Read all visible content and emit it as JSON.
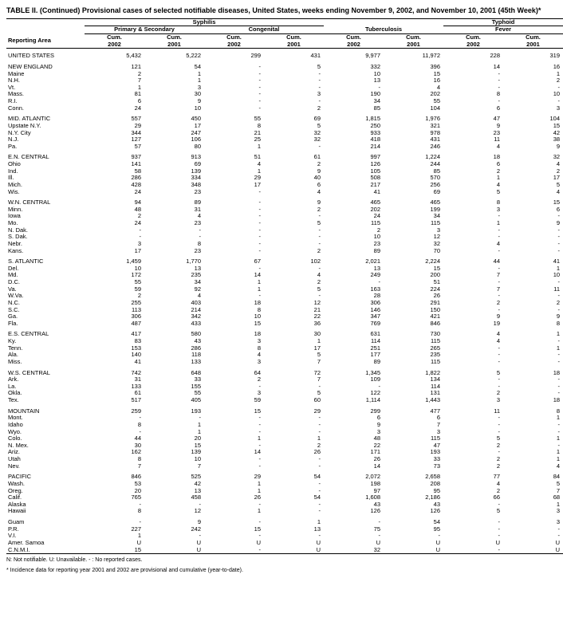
{
  "title": "TABLE II. (Continued) Provisional cases of selected notifiable diseases, United States, weeks ending November 9, 2002, and November 10, 2001 (45th Week)*",
  "footnote1": "N: Not notifiable.      U: Unavailable.      - : No reported cases.",
  "footnote2": "* Incidence data for reporting year 2001 and 2002 are provisional and cumulative (year-to-date).",
  "headers": {
    "syphilis": "Syphilis",
    "primary_secondary": "Primary & Secondary",
    "congenital": "Congenital",
    "tuberculosis": "Tuberculosis",
    "typhoid": "Typhoid",
    "fever": "Fever",
    "reporting_area": "Reporting Area",
    "cum2002": "Cum. 2002",
    "cum2001": "Cum. 2001"
  },
  "colors": {
    "text": "#000000",
    "bg": "#ffffff",
    "border": "#000000"
  },
  "font": {
    "family": "Arial, Helvetica, sans-serif",
    "size_body": 8,
    "size_title": 9,
    "size_foot": 7
  },
  "rows": [
    {
      "area": "UNITED STATES",
      "v": [
        "5,432",
        "5,222",
        "299",
        "431",
        "9,977",
        "11,972",
        "228",
        "319"
      ],
      "gap": true
    },
    {
      "area": "NEW ENGLAND",
      "v": [
        "121",
        "54",
        "-",
        "5",
        "332",
        "396",
        "14",
        "16"
      ],
      "gap": true
    },
    {
      "area": "Maine",
      "v": [
        "2",
        "1",
        "-",
        "-",
        "10",
        "15",
        "-",
        "1"
      ]
    },
    {
      "area": "N.H.",
      "v": [
        "7",
        "1",
        "-",
        "-",
        "13",
        "16",
        "-",
        "2"
      ]
    },
    {
      "area": "Vt.",
      "v": [
        "1",
        "3",
        "-",
        "-",
        "-",
        "4",
        "-",
        "-"
      ]
    },
    {
      "area": "Mass.",
      "v": [
        "81",
        "30",
        "-",
        "3",
        "190",
        "202",
        "8",
        "10"
      ]
    },
    {
      "area": "R.I.",
      "v": [
        "6",
        "9",
        "-",
        "-",
        "34",
        "55",
        "-",
        "-"
      ]
    },
    {
      "area": "Conn.",
      "v": [
        "24",
        "10",
        "-",
        "2",
        "85",
        "104",
        "6",
        "3"
      ]
    },
    {
      "area": "MID. ATLANTIC",
      "v": [
        "557",
        "450",
        "55",
        "69",
        "1,815",
        "1,976",
        "47",
        "104"
      ],
      "gap": true
    },
    {
      "area": "Upstate N.Y.",
      "v": [
        "29",
        "17",
        "8",
        "5",
        "250",
        "321",
        "9",
        "15"
      ]
    },
    {
      "area": "N.Y. City",
      "v": [
        "344",
        "247",
        "21",
        "32",
        "933",
        "978",
        "23",
        "42"
      ]
    },
    {
      "area": "N.J.",
      "v": [
        "127",
        "106",
        "25",
        "32",
        "418",
        "431",
        "11",
        "38"
      ]
    },
    {
      "area": "Pa.",
      "v": [
        "57",
        "80",
        "1",
        "-",
        "214",
        "246",
        "4",
        "9"
      ]
    },
    {
      "area": "E.N. CENTRAL",
      "v": [
        "937",
        "913",
        "51",
        "61",
        "997",
        "1,224",
        "18",
        "32"
      ],
      "gap": true
    },
    {
      "area": "Ohio",
      "v": [
        "141",
        "69",
        "4",
        "2",
        "126",
        "244",
        "6",
        "4"
      ]
    },
    {
      "area": "Ind.",
      "v": [
        "58",
        "139",
        "1",
        "9",
        "105",
        "85",
        "2",
        "2"
      ]
    },
    {
      "area": "Ill.",
      "v": [
        "286",
        "334",
        "29",
        "40",
        "508",
        "570",
        "1",
        "17"
      ]
    },
    {
      "area": "Mich.",
      "v": [
        "428",
        "348",
        "17",
        "6",
        "217",
        "256",
        "4",
        "5"
      ]
    },
    {
      "area": "Wis.",
      "v": [
        "24",
        "23",
        "-",
        "4",
        "41",
        "69",
        "5",
        "4"
      ]
    },
    {
      "area": "W.N. CENTRAL",
      "v": [
        "94",
        "89",
        "-",
        "9",
        "465",
        "465",
        "8",
        "15"
      ],
      "gap": true
    },
    {
      "area": "Minn.",
      "v": [
        "48",
        "31",
        "-",
        "2",
        "202",
        "199",
        "3",
        "6"
      ]
    },
    {
      "area": "Iowa",
      "v": [
        "2",
        "4",
        "-",
        "-",
        "24",
        "34",
        "-",
        "-"
      ]
    },
    {
      "area": "Mo.",
      "v": [
        "24",
        "23",
        "-",
        "5",
        "115",
        "115",
        "1",
        "9"
      ]
    },
    {
      "area": "N. Dak.",
      "v": [
        "-",
        "-",
        "-",
        "-",
        "2",
        "3",
        "-",
        "-"
      ]
    },
    {
      "area": "S. Dak.",
      "v": [
        "-",
        "-",
        "-",
        "-",
        "10",
        "12",
        "-",
        "-"
      ]
    },
    {
      "area": "Nebr.",
      "v": [
        "3",
        "8",
        "-",
        "-",
        "23",
        "32",
        "4",
        "-"
      ]
    },
    {
      "area": "Kans.",
      "v": [
        "17",
        "23",
        "-",
        "2",
        "89",
        "70",
        "-",
        "-"
      ]
    },
    {
      "area": "S. ATLANTIC",
      "v": [
        "1,459",
        "1,770",
        "67",
        "102",
        "2,021",
        "2,224",
        "44",
        "41"
      ],
      "gap": true
    },
    {
      "area": "Del.",
      "v": [
        "10",
        "13",
        "-",
        "-",
        "13",
        "15",
        "-",
        "1"
      ]
    },
    {
      "area": "Md.",
      "v": [
        "172",
        "235",
        "14",
        "4",
        "249",
        "200",
        "7",
        "10"
      ]
    },
    {
      "area": "D.C.",
      "v": [
        "55",
        "34",
        "1",
        "2",
        "-",
        "51",
        "-",
        "-"
      ]
    },
    {
      "area": "Va.",
      "v": [
        "59",
        "92",
        "1",
        "5",
        "163",
        "224",
        "7",
        "11"
      ]
    },
    {
      "area": "W.Va.",
      "v": [
        "2",
        "4",
        "-",
        "-",
        "28",
        "26",
        "-",
        "-"
      ]
    },
    {
      "area": "N.C.",
      "v": [
        "255",
        "403",
        "18",
        "12",
        "306",
        "291",
        "2",
        "2"
      ]
    },
    {
      "area": "S.C.",
      "v": [
        "113",
        "214",
        "8",
        "21",
        "146",
        "150",
        "-",
        "-"
      ]
    },
    {
      "area": "Ga.",
      "v": [
        "306",
        "342",
        "10",
        "22",
        "347",
        "421",
        "9",
        "9"
      ]
    },
    {
      "area": "Fla.",
      "v": [
        "487",
        "433",
        "15",
        "36",
        "769",
        "846",
        "19",
        "8"
      ]
    },
    {
      "area": "E.S. CENTRAL",
      "v": [
        "417",
        "580",
        "18",
        "30",
        "631",
        "730",
        "4",
        "1"
      ],
      "gap": true
    },
    {
      "area": "Ky.",
      "v": [
        "83",
        "43",
        "3",
        "1",
        "114",
        "115",
        "4",
        "-"
      ]
    },
    {
      "area": "Tenn.",
      "v": [
        "153",
        "286",
        "8",
        "17",
        "251",
        "265",
        "-",
        "1"
      ]
    },
    {
      "area": "Ala.",
      "v": [
        "140",
        "118",
        "4",
        "5",
        "177",
        "235",
        "-",
        "-"
      ]
    },
    {
      "area": "Miss.",
      "v": [
        "41",
        "133",
        "3",
        "7",
        "89",
        "115",
        "-",
        "-"
      ]
    },
    {
      "area": "W.S. CENTRAL",
      "v": [
        "742",
        "648",
        "64",
        "72",
        "1,345",
        "1,822",
        "5",
        "18"
      ],
      "gap": true
    },
    {
      "area": "Ark.",
      "v": [
        "31",
        "33",
        "2",
        "7",
        "109",
        "134",
        "-",
        "-"
      ]
    },
    {
      "area": "La.",
      "v": [
        "133",
        "155",
        "-",
        "-",
        "-",
        "114",
        "-",
        "-"
      ]
    },
    {
      "area": "Okla.",
      "v": [
        "61",
        "55",
        "3",
        "5",
        "122",
        "131",
        "2",
        "-"
      ]
    },
    {
      "area": "Tex.",
      "v": [
        "517",
        "405",
        "59",
        "60",
        "1,114",
        "1,443",
        "3",
        "18"
      ]
    },
    {
      "area": "MOUNTAIN",
      "v": [
        "259",
        "193",
        "15",
        "29",
        "299",
        "477",
        "11",
        "8"
      ],
      "gap": true
    },
    {
      "area": "Mont.",
      "v": [
        "-",
        "-",
        "-",
        "-",
        "6",
        "6",
        "-",
        "1"
      ]
    },
    {
      "area": "Idaho",
      "v": [
        "8",
        "1",
        "-",
        "-",
        "9",
        "7",
        "-",
        "-"
      ]
    },
    {
      "area": "Wyo.",
      "v": [
        "-",
        "1",
        "-",
        "-",
        "3",
        "3",
        "-",
        "-"
      ]
    },
    {
      "area": "Colo.",
      "v": [
        "44",
        "20",
        "1",
        "1",
        "48",
        "115",
        "5",
        "1"
      ]
    },
    {
      "area": "N. Mex.",
      "v": [
        "30",
        "15",
        "-",
        "2",
        "22",
        "47",
        "2",
        "-"
      ]
    },
    {
      "area": "Ariz.",
      "v": [
        "162",
        "139",
        "14",
        "26",
        "171",
        "193",
        "-",
        "1"
      ]
    },
    {
      "area": "Utah",
      "v": [
        "8",
        "10",
        "-",
        "-",
        "26",
        "33",
        "2",
        "1"
      ]
    },
    {
      "area": "Nev.",
      "v": [
        "7",
        "7",
        "-",
        "-",
        "14",
        "73",
        "2",
        "4"
      ]
    },
    {
      "area": "PACIFIC",
      "v": [
        "846",
        "525",
        "29",
        "54",
        "2,072",
        "2,658",
        "77",
        "84"
      ],
      "gap": true
    },
    {
      "area": "Wash.",
      "v": [
        "53",
        "42",
        "1",
        "-",
        "198",
        "208",
        "4",
        "5"
      ]
    },
    {
      "area": "Oreg.",
      "v": [
        "20",
        "13",
        "1",
        "-",
        "97",
        "95",
        "2",
        "7"
      ]
    },
    {
      "area": "Calif.",
      "v": [
        "765",
        "458",
        "26",
        "54",
        "1,608",
        "2,186",
        "66",
        "68"
      ]
    },
    {
      "area": "Alaska",
      "v": [
        "-",
        "-",
        "-",
        "-",
        "43",
        "43",
        "-",
        "1"
      ]
    },
    {
      "area": "Hawaii",
      "v": [
        "8",
        "12",
        "1",
        "-",
        "126",
        "126",
        "5",
        "3"
      ]
    },
    {
      "area": "Guam",
      "v": [
        "-",
        "9",
        "-",
        "1",
        "-",
        "54",
        "-",
        "3"
      ],
      "gap": true
    },
    {
      "area": "P.R.",
      "v": [
        "227",
        "242",
        "15",
        "13",
        "75",
        "95",
        "-",
        "-"
      ]
    },
    {
      "area": "V.I.",
      "v": [
        "1",
        "-",
        "-",
        "-",
        "-",
        "-",
        "-",
        "-"
      ]
    },
    {
      "area": "Amer. Samoa",
      "v": [
        "U",
        "U",
        "U",
        "U",
        "U",
        "U",
        "U",
        "U"
      ]
    },
    {
      "area": "C.N.M.I.",
      "v": [
        "15",
        "U",
        "-",
        "U",
        "32",
        "U",
        "-",
        "U"
      ]
    }
  ]
}
